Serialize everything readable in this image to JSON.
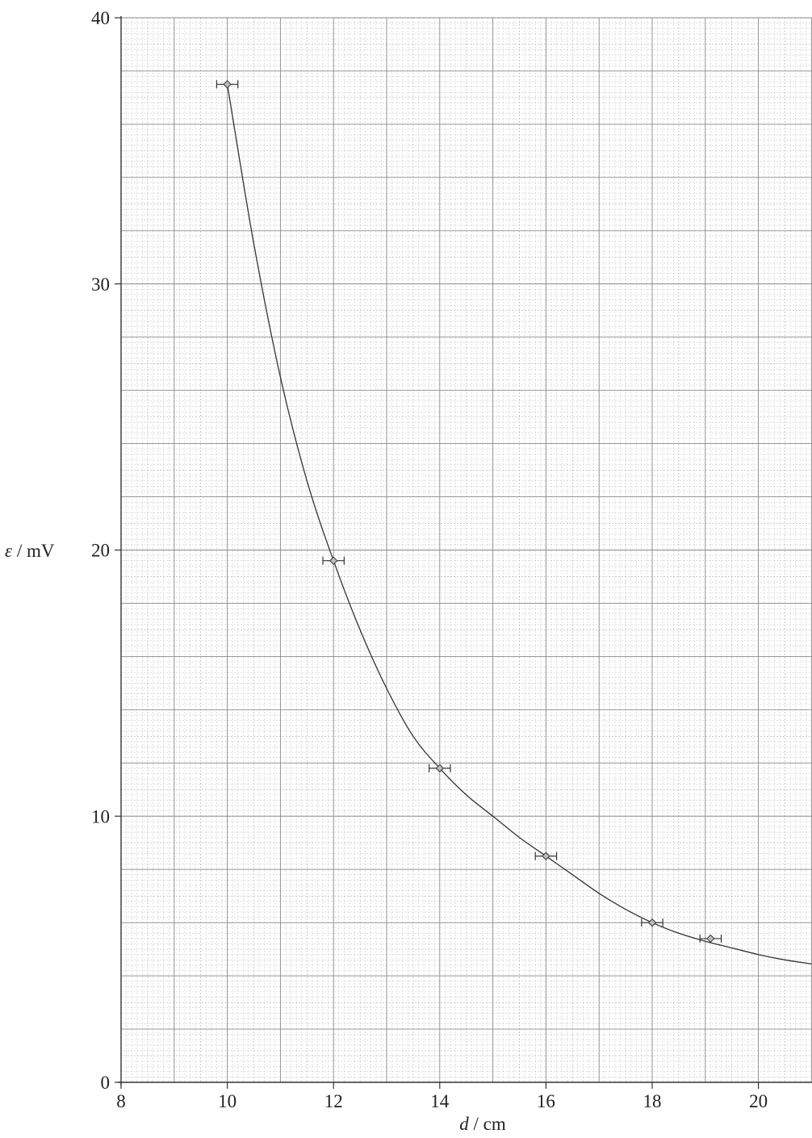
{
  "chart_data": {
    "type": "scatter",
    "xlabel_var": "d",
    "xlabel_unit": " / cm",
    "ylabel_var": "ε",
    "ylabel_unit": " / mV",
    "xlim": [
      8,
      21
    ],
    "ylim": [
      0,
      40
    ],
    "x_ticks": [
      "8",
      "10",
      "12",
      "14",
      "16",
      "18",
      "20"
    ],
    "y_ticks": [
      "0",
      "10",
      "20",
      "30",
      "40"
    ],
    "grid": true,
    "series": [
      {
        "points": [
          {
            "x": 10.0,
            "y": 37.5,
            "xerr": 0.2
          },
          {
            "x": 12.0,
            "y": 19.6,
            "xerr": 0.2
          },
          {
            "x": 14.0,
            "y": 11.8,
            "xerr": 0.2
          },
          {
            "x": 16.0,
            "y": 8.5,
            "xerr": 0.2
          },
          {
            "x": 18.0,
            "y": 6.0,
            "xerr": 0.2
          },
          {
            "x": 19.1,
            "y": 5.4,
            "xerr": 0.2
          }
        ]
      }
    ],
    "best_fit_curve": [
      [
        10.0,
        37.5
      ],
      [
        10.5,
        31.5
      ],
      [
        11.0,
        26.5
      ],
      [
        11.5,
        22.6
      ],
      [
        12.0,
        19.6
      ],
      [
        12.5,
        17.0
      ],
      [
        13.0,
        14.8
      ],
      [
        13.5,
        13.0
      ],
      [
        14.0,
        11.8
      ],
      [
        14.5,
        10.8
      ],
      [
        15.0,
        10.0
      ],
      [
        15.5,
        9.2
      ],
      [
        16.0,
        8.5
      ],
      [
        16.5,
        7.8
      ],
      [
        17.0,
        7.1
      ],
      [
        17.5,
        6.5
      ],
      [
        18.0,
        6.0
      ],
      [
        18.5,
        5.6
      ],
      [
        19.0,
        5.3
      ],
      [
        19.5,
        5.05
      ],
      [
        20.0,
        4.8
      ],
      [
        20.5,
        4.6
      ],
      [
        21.0,
        4.45
      ]
    ]
  }
}
